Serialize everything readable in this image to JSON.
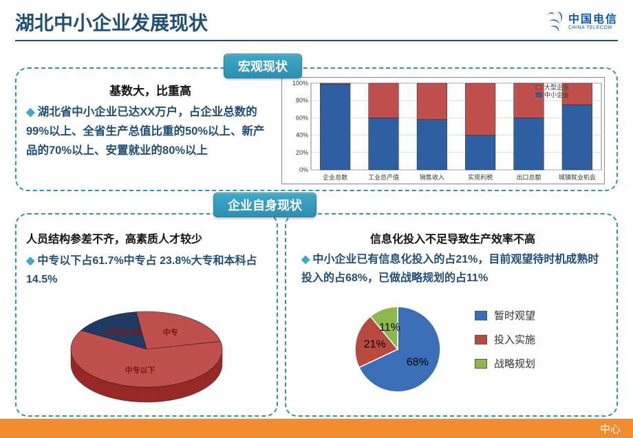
{
  "header": {
    "title": "湖北中小企业发展现状",
    "logo_cn": "中国电信",
    "logo_en": "CHINA TELECOM",
    "logo_color": "#0a5ab4"
  },
  "badges": {
    "macro": "宏观现状",
    "self": "企业自身现状"
  },
  "top_left": {
    "title": "基数大，比重高",
    "text": "湖北省中小企业已达XX万户，占企业总数的99%以上、全省生产总值比重的50%以上、新产品的70%以上、安置就业的80%以上"
  },
  "bar_chart": {
    "type": "stacked-bar",
    "categories": [
      "企业总数",
      "工业总产值",
      "销售收入",
      "实现利税",
      "出口总额",
      "城镇就业机会"
    ],
    "sme_values": [
      99,
      60,
      58,
      40,
      60,
      75
    ],
    "sme_color": "#2f5fa3",
    "large_color": "#c0504d",
    "legend_sme": "中小企业",
    "legend_large": "大型企业",
    "y_ticks": [
      0,
      20,
      40,
      60,
      80,
      100
    ],
    "y_format": "%",
    "grid_color": "#bfbfbf",
    "border_color": "#7f7f7f",
    "bg": "#ffffff",
    "label_fontsize": 9
  },
  "bottom_left": {
    "title": "人员结构参差不齐，高素质人才较少",
    "text": "中专以下占61.7%中专占 23.8%大专和本科占14.5%",
    "pie": {
      "type": "pie-3d",
      "slices": [
        {
          "label": "大专及本科",
          "value": 14.5,
          "color": "#1f3a63"
        },
        {
          "label": "中专",
          "value": 23.8,
          "color": "#c0504d"
        },
        {
          "label": "中专以下",
          "value": 61.7,
          "color": "#c0504d"
        }
      ],
      "label_color": "#7a1818",
      "label_fontsize": 11
    }
  },
  "bottom_right": {
    "title": "信息化投入不足导致生产效率不高",
    "text": "中小企业已有信息化投入的占21%，目前观望待时机成熟时投入的占68%，已做战略规划的占11%",
    "pie": {
      "type": "pie",
      "slices": [
        {
          "label": "暂时观望",
          "value": 68,
          "color": "#3a6fb7",
          "text": "68%"
        },
        {
          "label": "投入实施",
          "value": 21,
          "color": "#b94a3f",
          "text": "21%"
        },
        {
          "label": "战略规划",
          "value": 11,
          "color": "#8fb84a",
          "text": "11%"
        }
      ],
      "label_fontsize": 16,
      "legend_box_border": "#555"
    }
  },
  "footer": {
    "text": "中心",
    "bg": "#f08c2e"
  }
}
